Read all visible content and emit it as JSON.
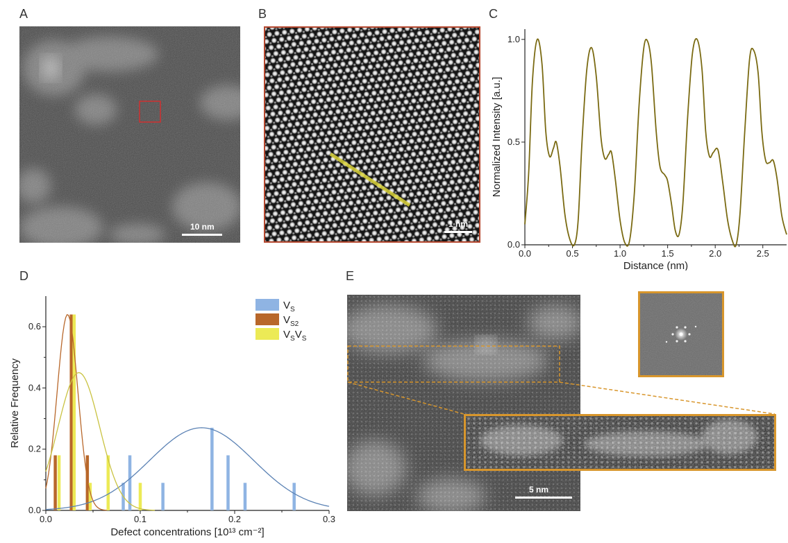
{
  "panels": {
    "a": {
      "letter": "A",
      "scalebar": "10 nm"
    },
    "b": {
      "letter": "B",
      "scalebar": "1 nm"
    },
    "c": {
      "letter": "C"
    },
    "d": {
      "letter": "D"
    },
    "e": {
      "letter": "E",
      "scalebar": "5 nm"
    }
  },
  "colors": {
    "profile_line": "#7a6a12",
    "vs": "#8fb4e3",
    "vs2": "#b8672a",
    "vsvs": "#ecea56",
    "frame_b": "#b4472e",
    "frame_e": "#d8962c",
    "roi_a": "#d03030"
  },
  "chart_data": [
    {
      "type": "line",
      "xlabel": "Distance (nm)",
      "ylabel": "Normalized Intensity [a.u.]",
      "xlim": [
        0,
        2.75
      ],
      "ylim": [
        0,
        1.05
      ],
      "xticks": [
        "0.0",
        "0.5",
        "1.0",
        "1.5",
        "2.0",
        "2.5"
      ],
      "yticks": [
        "0.0",
        "0.5",
        "1.0"
      ],
      "ytick_values": [
        0,
        0.5,
        1.0
      ],
      "series": [
        {
          "points": [
            [
              0.0,
              0.1
            ],
            [
              0.04,
              0.35
            ],
            [
              0.08,
              0.8
            ],
            [
              0.13,
              1.0
            ],
            [
              0.18,
              0.88
            ],
            [
              0.22,
              0.55
            ],
            [
              0.26,
              0.43
            ],
            [
              0.3,
              0.47
            ],
            [
              0.33,
              0.5
            ],
            [
              0.37,
              0.38
            ],
            [
              0.42,
              0.15
            ],
            [
              0.47,
              0.03
            ],
            [
              0.52,
              0.0
            ],
            [
              0.56,
              0.12
            ],
            [
              0.6,
              0.5
            ],
            [
              0.65,
              0.85
            ],
            [
              0.7,
              0.96
            ],
            [
              0.75,
              0.82
            ],
            [
              0.8,
              0.52
            ],
            [
              0.84,
              0.42
            ],
            [
              0.88,
              0.44
            ],
            [
              0.91,
              0.45
            ],
            [
              0.95,
              0.32
            ],
            [
              1.0,
              0.12
            ],
            [
              1.05,
              0.01
            ],
            [
              1.1,
              0.02
            ],
            [
              1.15,
              0.25
            ],
            [
              1.2,
              0.68
            ],
            [
              1.25,
              0.96
            ],
            [
              1.29,
              0.99
            ],
            [
              1.33,
              0.88
            ],
            [
              1.38,
              0.55
            ],
            [
              1.42,
              0.38
            ],
            [
              1.47,
              0.34
            ],
            [
              1.5,
              0.31
            ],
            [
              1.54,
              0.2
            ],
            [
              1.58,
              0.07
            ],
            [
              1.62,
              0.05
            ],
            [
              1.66,
              0.2
            ],
            [
              1.71,
              0.62
            ],
            [
              1.76,
              0.93
            ],
            [
              1.81,
              1.0
            ],
            [
              1.86,
              0.86
            ],
            [
              1.9,
              0.55
            ],
            [
              1.94,
              0.43
            ],
            [
              1.98,
              0.45
            ],
            [
              2.03,
              0.46
            ],
            [
              2.08,
              0.3
            ],
            [
              2.13,
              0.12
            ],
            [
              2.18,
              0.02
            ],
            [
              2.22,
              0.0
            ],
            [
              2.26,
              0.15
            ],
            [
              2.31,
              0.55
            ],
            [
              2.36,
              0.9
            ],
            [
              2.4,
              0.95
            ],
            [
              2.45,
              0.84
            ],
            [
              2.49,
              0.55
            ],
            [
              2.53,
              0.41
            ],
            [
              2.57,
              0.4
            ],
            [
              2.61,
              0.41
            ],
            [
              2.65,
              0.32
            ],
            [
              2.7,
              0.14
            ],
            [
              2.75,
              0.05
            ]
          ]
        }
      ]
    },
    {
      "type": "bar",
      "xlabel": "Defect concentrations [10¹³ cm⁻²]",
      "ylabel": "Relative Frequency",
      "xlim": [
        0,
        0.3
      ],
      "ylim": [
        0,
        0.7
      ],
      "xticks": [
        "0.0",
        "0.1",
        "0.2",
        "0.3"
      ],
      "xtick_values": [
        0,
        0.1,
        0.2,
        0.3
      ],
      "yticks": [
        "0.0",
        "0.2",
        "0.4",
        "0.6"
      ],
      "ytick_values": [
        0,
        0.2,
        0.4,
        0.6
      ],
      "legend_position": "top-right",
      "series": [
        {
          "key": "vs",
          "label_main": "V",
          "label_sub": "S",
          "label_main2": "",
          "label_sub2": "",
          "bars": [
            [
              0.082,
              0.09
            ],
            [
              0.089,
              0.18
            ],
            [
              0.124,
              0.09
            ],
            [
              0.176,
              0.27
            ],
            [
              0.193,
              0.18
            ],
            [
              0.211,
              0.09
            ],
            [
              0.263,
              0.09
            ]
          ],
          "fit": {
            "amp": 0.27,
            "mu": 0.165,
            "sigma": 0.055
          }
        },
        {
          "key": "vs2",
          "label_main": "V",
          "label_sub": "S2",
          "label_main2": "",
          "label_sub2": "",
          "bars": [
            [
              0.01,
              0.18
            ],
            [
              0.027,
              0.64
            ],
            [
              0.044,
              0.18
            ]
          ],
          "fit": {
            "amp": 0.64,
            "mu": 0.023,
            "sigma": 0.011
          }
        },
        {
          "key": "vsvs",
          "label_main": "V",
          "label_sub": "S",
          "label_main2": "V",
          "label_sub2": "S",
          "bars": [
            [
              0.014,
              0.18
            ],
            [
              0.03,
              0.64
            ],
            [
              0.047,
              0.09
            ],
            [
              0.066,
              0.18
            ],
            [
              0.1,
              0.09
            ]
          ],
          "fit": {
            "amp": 0.45,
            "mu": 0.035,
            "sigma": 0.022
          }
        }
      ]
    }
  ]
}
